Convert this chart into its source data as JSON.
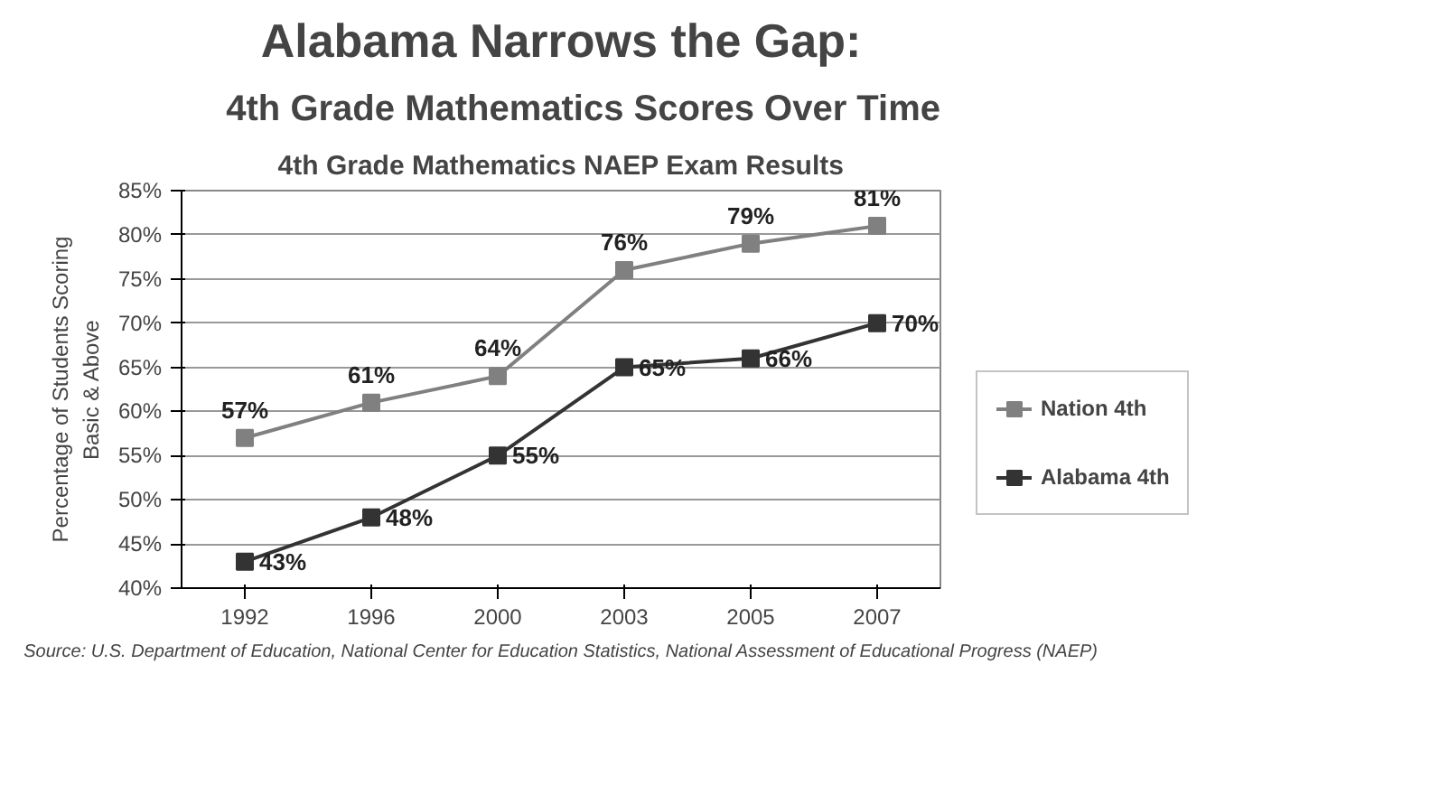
{
  "chart_data": {
    "type": "line",
    "title": "Alabama Narrows the Gap:",
    "subtitle": "4th Grade Mathematics Scores Over Time",
    "ylabel": "Percentage of Students Scoring\nBasic & Above",
    "categories": [
      "1992",
      "1996",
      "2000",
      "2003",
      "2005",
      "2007"
    ],
    "series": [
      {
        "name": "Nation 4th",
        "color": "#808080",
        "values": [
          57,
          61,
          64,
          76,
          79,
          81
        ],
        "value_labels": [
          "57%",
          "61%",
          "64%",
          "76%",
          "79%",
          "81%"
        ]
      },
      {
        "name": "Alabama 4th",
        "color": "#333333",
        "values": [
          43,
          48,
          55,
          65,
          66,
          70
        ],
        "value_labels": [
          "43%",
          "48%",
          "55%",
          "65%",
          "66%",
          "70%"
        ]
      }
    ],
    "ylim": [
      40,
      85
    ],
    "yticks": [
      {
        "value": 40,
        "label": "40%"
      },
      {
        "value": 45,
        "label": "45%"
      },
      {
        "value": 50,
        "label": "50%"
      },
      {
        "value": 55,
        "label": "55%"
      },
      {
        "value": 60,
        "label": "60%"
      },
      {
        "value": 65,
        "label": "65%"
      },
      {
        "value": 70,
        "label": "70%"
      },
      {
        "value": 75,
        "label": "75%"
      },
      {
        "value": 80,
        "label": "80%"
      },
      {
        "value": 85,
        "label": "85%"
      }
    ],
    "annotations": [
      "4th Grade Mathematics NAEP Exam Results",
      "Source: U.S. Department of Education, National Center for Education Statistics, National Assessment of Educational Progress (NAEP)"
    ],
    "grid": "y",
    "legend": "right",
    "marker": "square",
    "line_style": "solid"
  }
}
